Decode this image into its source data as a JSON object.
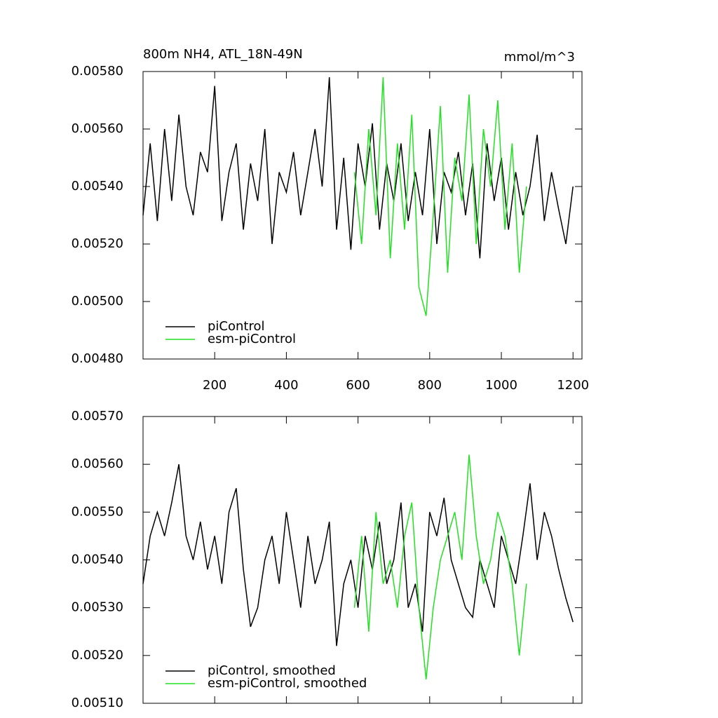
{
  "chart_data": [
    {
      "type": "line",
      "title": "800m NH4, ATL_18N-49N",
      "subtitle": "mmol/m^3",
      "xlim": [
        0,
        1225
      ],
      "xticks": [
        200,
        400,
        600,
        800,
        1000,
        1200
      ],
      "ylim": [
        0.0048,
        0.0058
      ],
      "yticks": [
        {
          "value": 0.0048,
          "label": "0.00480"
        },
        {
          "value": 0.005,
          "label": "0.00500"
        },
        {
          "value": 0.0052,
          "label": "0.00520"
        },
        {
          "value": 0.0054,
          "label": "0.00540"
        },
        {
          "value": 0.0056,
          "label": "0.00560"
        },
        {
          "value": 0.0058,
          "label": "0.00580"
        }
      ],
      "legend": "lower-left",
      "series": [
        {
          "name": "piControl",
          "color": "#000000",
          "x": [
            0,
            20,
            40,
            60,
            80,
            100,
            120,
            140,
            160,
            180,
            200,
            220,
            240,
            260,
            280,
            300,
            320,
            340,
            360,
            380,
            400,
            420,
            440,
            460,
            480,
            500,
            520,
            540,
            560,
            580,
            600,
            620,
            640,
            660,
            680,
            700,
            720,
            740,
            760,
            780,
            800,
            820,
            840,
            860,
            880,
            900,
            920,
            940,
            960,
            980,
            1000,
            1020,
            1040,
            1060,
            1080,
            1100,
            1120,
            1140,
            1160,
            1180,
            1200
          ],
          "values": [
            0.0053,
            0.00555,
            0.00528,
            0.0056,
            0.00535,
            0.00565,
            0.0054,
            0.0053,
            0.00552,
            0.00545,
            0.00575,
            0.00528,
            0.00545,
            0.00555,
            0.00525,
            0.00548,
            0.00535,
            0.0056,
            0.0052,
            0.00545,
            0.00538,
            0.00552,
            0.0053,
            0.00545,
            0.0056,
            0.0054,
            0.00578,
            0.00525,
            0.0055,
            0.00518,
            0.00555,
            0.0054,
            0.00562,
            0.00525,
            0.00548,
            0.00535,
            0.00555,
            0.00528,
            0.00545,
            0.0053,
            0.0056,
            0.0052,
            0.00545,
            0.00538,
            0.00552,
            0.0053,
            0.00548,
            0.00515,
            0.00555,
            0.00535,
            0.0055,
            0.00525,
            0.00545,
            0.0053,
            0.0054,
            0.00558,
            0.00528,
            0.00545,
            0.00532,
            0.0052,
            0.0054
          ]
        },
        {
          "name": "esm-piControl",
          "color": "#22e022",
          "x": [
            590,
            610,
            630,
            650,
            670,
            690,
            710,
            730,
            750,
            770,
            790,
            810,
            830,
            850,
            870,
            890,
            910,
            930,
            950,
            970,
            990,
            1010,
            1030,
            1050,
            1070
          ],
          "values": [
            0.00545,
            0.0052,
            0.0056,
            0.0053,
            0.00578,
            0.00515,
            0.00555,
            0.00525,
            0.00565,
            0.00505,
            0.00495,
            0.0053,
            0.00568,
            0.0051,
            0.0055,
            0.00535,
            0.00572,
            0.0052,
            0.0056,
            0.0054,
            0.0057,
            0.00525,
            0.00555,
            0.0051,
            0.0054
          ]
        }
      ]
    },
    {
      "type": "line",
      "xlim": [
        0,
        1225
      ],
      "xticks": [
        200,
        400,
        600,
        800,
        1000,
        1200
      ],
      "ylim": [
        0.0051,
        0.0057
      ],
      "yticks": [
        {
          "value": 0.0051,
          "label": "0.00510"
        },
        {
          "value": 0.0052,
          "label": "0.00520"
        },
        {
          "value": 0.0053,
          "label": "0.00530"
        },
        {
          "value": 0.0054,
          "label": "0.00540"
        },
        {
          "value": 0.0055,
          "label": "0.00550"
        },
        {
          "value": 0.0056,
          "label": "0.00560"
        },
        {
          "value": 0.0057,
          "label": "0.00570"
        }
      ],
      "legend": "lower-left",
      "series": [
        {
          "name": "piControl, smoothed",
          "color": "#000000",
          "x": [
            0,
            20,
            40,
            60,
            80,
            100,
            120,
            140,
            160,
            180,
            200,
            220,
            240,
            260,
            280,
            300,
            320,
            340,
            360,
            380,
            400,
            420,
            440,
            460,
            480,
            500,
            520,
            540,
            560,
            580,
            600,
            620,
            640,
            660,
            680,
            700,
            720,
            740,
            760,
            780,
            800,
            820,
            840,
            860,
            880,
            900,
            920,
            940,
            960,
            980,
            1000,
            1020,
            1040,
            1060,
            1080,
            1100,
            1120,
            1140,
            1160,
            1180,
            1200
          ],
          "values": [
            0.00535,
            0.00545,
            0.0055,
            0.00545,
            0.00552,
            0.0056,
            0.00545,
            0.0054,
            0.00548,
            0.00538,
            0.00545,
            0.00535,
            0.0055,
            0.00555,
            0.00538,
            0.00526,
            0.0053,
            0.0054,
            0.00545,
            0.00535,
            0.0055,
            0.0054,
            0.0053,
            0.00545,
            0.00535,
            0.0054,
            0.00548,
            0.00522,
            0.00535,
            0.0054,
            0.0053,
            0.00545,
            0.00538,
            0.00548,
            0.00535,
            0.0054,
            0.00552,
            0.0053,
            0.00535,
            0.00525,
            0.0055,
            0.00545,
            0.00553,
            0.0054,
            0.00535,
            0.0053,
            0.00528,
            0.0054,
            0.00535,
            0.0053,
            0.00545,
            0.0054,
            0.00535,
            0.00545,
            0.00556,
            0.0054,
            0.0055,
            0.00545,
            0.00538,
            0.00532,
            0.00527
          ]
        },
        {
          "name": "esm-piControl, smoothed",
          "color": "#22e022",
          "x": [
            590,
            610,
            630,
            650,
            670,
            690,
            710,
            730,
            750,
            770,
            790,
            810,
            830,
            850,
            870,
            890,
            910,
            930,
            950,
            970,
            990,
            1010,
            1030,
            1050,
            1070
          ],
          "values": [
            0.0053,
            0.00545,
            0.00525,
            0.0055,
            0.00535,
            0.0054,
            0.0053,
            0.00545,
            0.00552,
            0.0053,
            0.00515,
            0.0053,
            0.0054,
            0.00545,
            0.0055,
            0.0054,
            0.00562,
            0.00545,
            0.00535,
            0.0054,
            0.0055,
            0.00545,
            0.00535,
            0.0052,
            0.00535
          ]
        }
      ]
    }
  ]
}
